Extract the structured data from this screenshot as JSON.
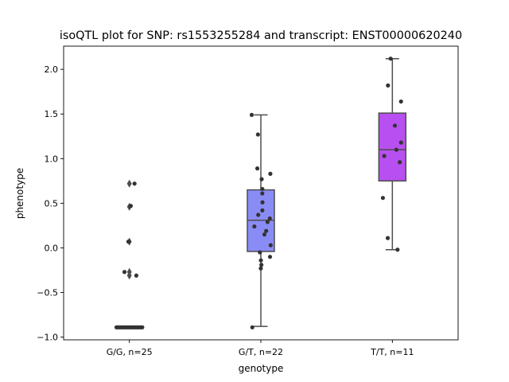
{
  "chart_data": {
    "type": "box",
    "title": "isoQTL plot for SNP: rs1553255284 and transcript: ENST00000620240",
    "xlabel": "genotype",
    "ylabel": "phenotype",
    "ylim": [
      -1.03,
      2.26
    ],
    "yticks": [
      -1.0,
      -0.5,
      0.0,
      0.5,
      1.0,
      1.5,
      2.0
    ],
    "ytick_labels": [
      "−1.0",
      "−0.5",
      "0.0",
      "0.5",
      "1.0",
      "1.5",
      "2.0"
    ],
    "categories": [
      "G/G, n=25",
      "G/T, n=22",
      "T/T, n=11"
    ],
    "groups": [
      {
        "name": "G/G, n=25",
        "color": "#7b7b7b",
        "box": null,
        "outliers": [
          0.72,
          0.46,
          0.07,
          -0.27,
          -0.31
        ],
        "points": [
          0.72,
          0.47,
          0.07,
          -0.27,
          -0.31,
          -0.89,
          -0.89,
          -0.89,
          -0.89,
          -0.89,
          -0.89,
          -0.89,
          -0.89,
          -0.89,
          -0.89,
          -0.89,
          -0.89,
          -0.89,
          -0.89,
          -0.89,
          -0.89,
          -0.89,
          -0.89,
          -0.89,
          -0.89
        ]
      },
      {
        "name": "G/T, n=22",
        "color": "#8a8cf6",
        "box": {
          "whisker_low": -0.88,
          "q1": -0.04,
          "median": 0.31,
          "q3": 0.65,
          "whisker_high": 1.49
        },
        "outliers": [],
        "points": [
          1.49,
          1.27,
          0.89,
          0.83,
          0.77,
          0.66,
          0.61,
          0.51,
          0.42,
          0.37,
          0.33,
          0.29,
          0.24,
          0.19,
          0.15,
          0.03,
          -0.05,
          -0.1,
          -0.14,
          -0.19,
          -0.23,
          -0.89
        ]
      },
      {
        "name": "T/T, n=11",
        "color": "#b84ff0",
        "box": {
          "whisker_low": -0.02,
          "q1": 0.75,
          "median": 1.1,
          "q3": 1.51,
          "whisker_high": 2.12
        },
        "outliers": [],
        "points": [
          2.12,
          1.82,
          1.64,
          1.37,
          1.18,
          1.1,
          1.03,
          0.96,
          0.56,
          0.11,
          -0.02
        ]
      }
    ],
    "grid": false,
    "legend": "none"
  }
}
